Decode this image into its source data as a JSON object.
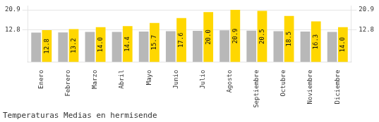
{
  "chart_data": {
    "type": "bar",
    "title": "Temperaturas Medias en hermisende",
    "categories": [
      "Enero",
      "Febrero",
      "Marzo",
      "Abril",
      "Mayo",
      "Junio",
      "Julio",
      "Agosto",
      "Septiembre",
      "Octubre",
      "Noviembre",
      "Diciembre"
    ],
    "series": [
      {
        "color": "#B8B8B8",
        "values": [
          11.8,
          11.9,
          12.1,
          12.1,
          12.2,
          12.4,
          12.5,
          12.7,
          12.6,
          12.4,
          12.2,
          12.1
        ]
      },
      {
        "color": "#FFD700",
        "values": [
          12.8,
          13.2,
          14.0,
          14.4,
          15.7,
          17.6,
          20.0,
          20.9,
          20.5,
          18.5,
          16.3,
          14.0
        ],
        "value_labels": [
          "12.8",
          "13.2",
          "14.0",
          "14.4",
          "15.7",
          "17.6",
          "20.0",
          "20.9",
          "20.5",
          "18.5",
          "16.3",
          "14.0"
        ],
        "data_labels": true
      }
    ],
    "ylim": [
      0,
      22.5
    ],
    "yticks": [
      12.8,
      20.9
    ],
    "y2lim": [
      0,
      22.5
    ],
    "y2ticks": [
      12.8,
      20.9
    ],
    "grid": true
  }
}
